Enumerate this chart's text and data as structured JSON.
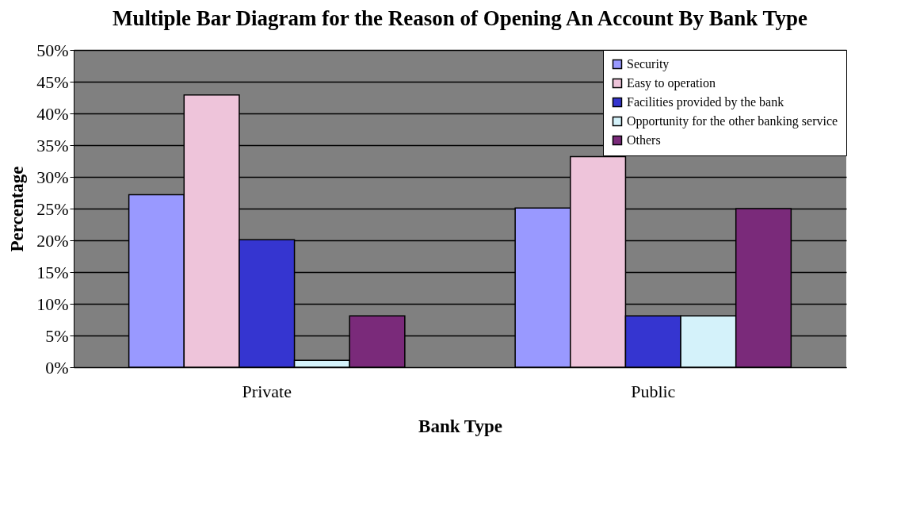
{
  "chart_data": {
    "type": "bar",
    "title": "Multiple Bar Diagram for the Reason of Opening An Account By Bank Type",
    "xlabel": "Bank Type",
    "ylabel": "Percentage",
    "categories": [
      "Private",
      "Public"
    ],
    "series": [
      {
        "name": "Security",
        "color": "#9999ff",
        "values": [
          27.2,
          25.1
        ]
      },
      {
        "name": "Easy to operation",
        "color": "#eec4da",
        "values": [
          42.9,
          33.2
        ]
      },
      {
        "name": "Facilities provided by the bank",
        "color": "#3535d0",
        "values": [
          20.1,
          8.1
        ]
      },
      {
        "name": "Opportunity for the other banking service",
        "color": "#d4f2fa",
        "values": [
          1.1,
          8.1
        ]
      },
      {
        "name": "Others",
        "color": "#7a2a7a",
        "values": [
          8.1,
          25
        ]
      }
    ],
    "ylim": [
      0,
      50
    ],
    "yticks": [
      {
        "value": 0,
        "label": "0%"
      },
      {
        "value": 5,
        "label": "5%"
      },
      {
        "value": 10,
        "label": "10%"
      },
      {
        "value": 15,
        "label": "15%"
      },
      {
        "value": 20,
        "label": "20%"
      },
      {
        "value": 25,
        "label": "25%"
      },
      {
        "value": 30,
        "label": "30%"
      },
      {
        "value": 35,
        "label": "35%"
      },
      {
        "value": 40,
        "label": "40%"
      },
      {
        "value": 45,
        "label": "45%"
      },
      {
        "value": 50,
        "label": "50%"
      }
    ],
    "grid": "y",
    "legend": "top right"
  }
}
